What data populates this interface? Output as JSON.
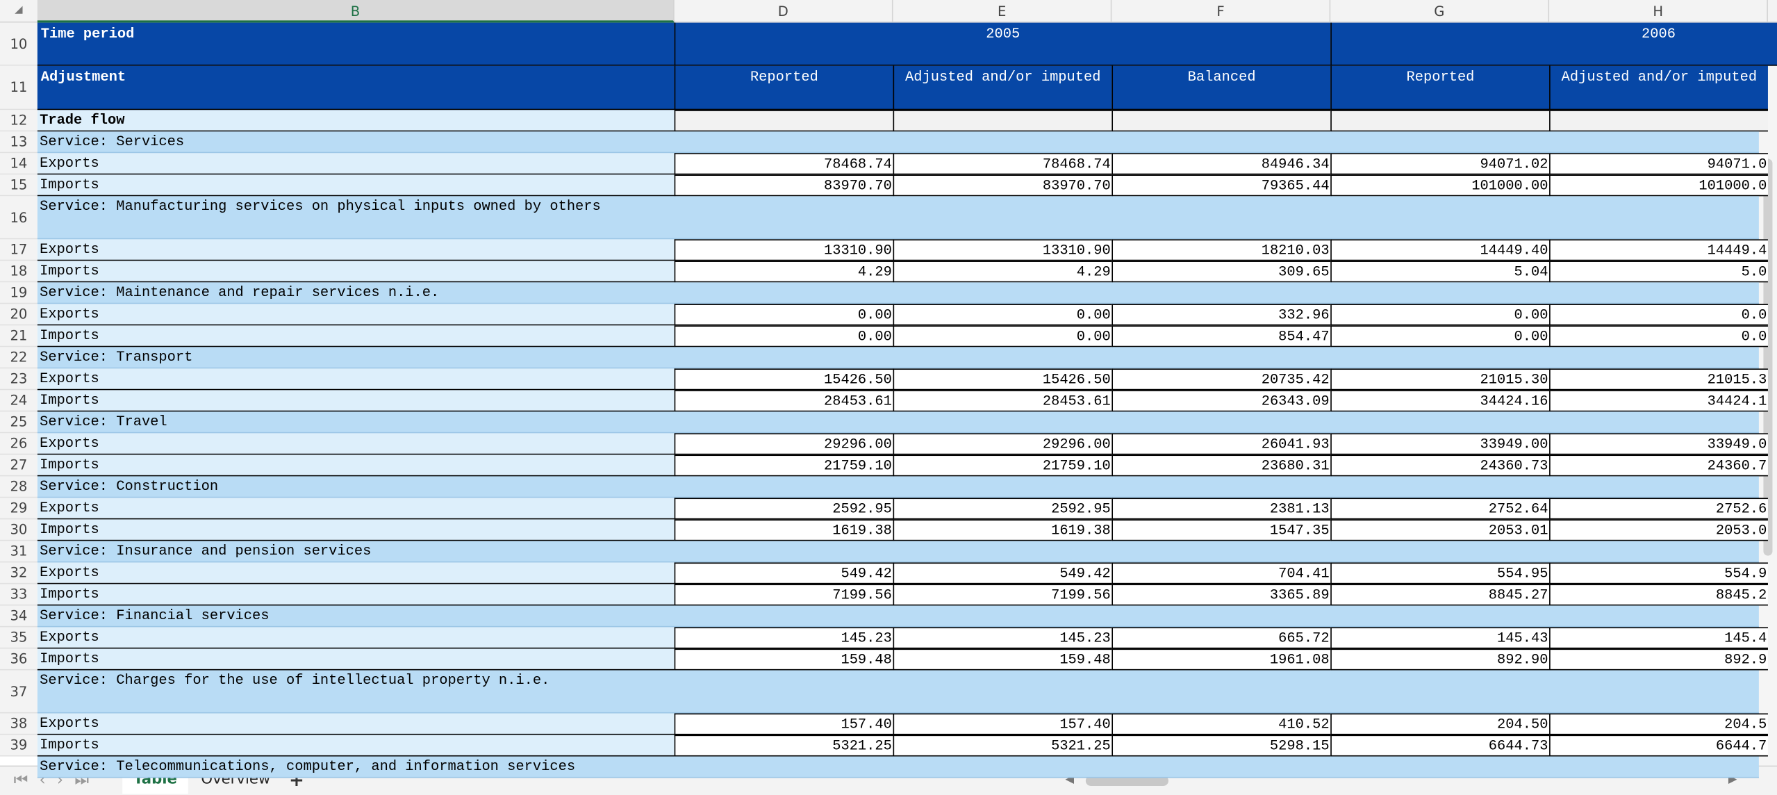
{
  "columns": [
    "B",
    "D",
    "E",
    "F",
    "G",
    "H"
  ],
  "header": {
    "row_numbers": [
      "10",
      "11"
    ],
    "time_period": "Time period",
    "years": [
      "2005",
      "2006"
    ],
    "adjustment": "Adjustment",
    "adjustments": [
      "Reported",
      "Adjusted and/or imputed",
      "Balanced",
      "Reported",
      "Adjusted and/or imputed"
    ]
  },
  "rows": [
    {
      "num": "12",
      "cells": [
        "Trade flow"
      ]
    },
    {
      "num": "13",
      "cells": [
        "Service: Services"
      ]
    },
    {
      "num": "14",
      "cells": [
        "Exports",
        "78468.74",
        "78468.74",
        "84946.34",
        "94071.02",
        "94071.0"
      ]
    },
    {
      "num": "15",
      "cells": [
        "Imports",
        "83970.70",
        "83970.70",
        "79365.44",
        "101000.00",
        "101000.0"
      ]
    },
    {
      "num": "16",
      "cells": [
        "Service: Manufacturing services on physical inputs owned by others"
      ]
    },
    {
      "num": "17",
      "cells": [
        "Exports",
        "13310.90",
        "13310.90",
        "18210.03",
        "14449.40",
        "14449.4"
      ]
    },
    {
      "num": "18",
      "cells": [
        "Imports",
        "4.29",
        "4.29",
        "309.65",
        "5.04",
        "5.0"
      ]
    },
    {
      "num": "19",
      "cells": [
        "Service: Maintenance and repair services n.i.e."
      ]
    },
    {
      "num": "20",
      "cells": [
        "Exports",
        "0.00",
        "0.00",
        "332.96",
        "0.00",
        "0.0"
      ]
    },
    {
      "num": "21",
      "cells": [
        "Imports",
        "0.00",
        "0.00",
        "854.47",
        "0.00",
        "0.0"
      ]
    },
    {
      "num": "22",
      "cells": [
        "Service: Transport"
      ]
    },
    {
      "num": "23",
      "cells": [
        "Exports",
        "15426.50",
        "15426.50",
        "20735.42",
        "21015.30",
        "21015.3"
      ]
    },
    {
      "num": "24",
      "cells": [
        "Imports",
        "28453.61",
        "28453.61",
        "26343.09",
        "34424.16",
        "34424.1"
      ]
    },
    {
      "num": "25",
      "cells": [
        "Service: Travel"
      ]
    },
    {
      "num": "26",
      "cells": [
        "Exports",
        "29296.00",
        "29296.00",
        "26041.93",
        "33949.00",
        "33949.0"
      ]
    },
    {
      "num": "27",
      "cells": [
        "Imports",
        "21759.10",
        "21759.10",
        "23680.31",
        "24360.73",
        "24360.7"
      ]
    },
    {
      "num": "28",
      "cells": [
        "Service: Construction"
      ]
    },
    {
      "num": "29",
      "cells": [
        "Exports",
        "2592.95",
        "2592.95",
        "2381.13",
        "2752.64",
        "2752.6"
      ]
    },
    {
      "num": "30",
      "cells": [
        "Imports",
        "1619.38",
        "1619.38",
        "1547.35",
        "2053.01",
        "2053.0"
      ]
    },
    {
      "num": "31",
      "cells": [
        "Service: Insurance and pension services"
      ]
    },
    {
      "num": "32",
      "cells": [
        "Exports",
        "549.42",
        "549.42",
        "704.41",
        "554.95",
        "554.9"
      ]
    },
    {
      "num": "33",
      "cells": [
        "Imports",
        "7199.56",
        "7199.56",
        "3365.89",
        "8845.27",
        "8845.2"
      ]
    },
    {
      "num": "34",
      "cells": [
        "Service: Financial services"
      ]
    },
    {
      "num": "35",
      "cells": [
        "Exports",
        "145.23",
        "145.23",
        "665.72",
        "145.43",
        "145.4"
      ]
    },
    {
      "num": "36",
      "cells": [
        "Imports",
        "159.48",
        "159.48",
        "1961.08",
        "892.90",
        "892.9"
      ]
    },
    {
      "num": "37",
      "cells": [
        "Service: Charges for the use of intellectual property n.i.e."
      ]
    },
    {
      "num": "38",
      "cells": [
        "Exports",
        "157.40",
        "157.40",
        "410.52",
        "204.50",
        "204.5"
      ]
    },
    {
      "num": "39",
      "cells": [
        "Imports",
        "5321.25",
        "5321.25",
        "5298.15",
        "6644.73",
        "6644.7"
      ]
    },
    {
      "cells": [
        "Service: Telecommunications, computer, and information services"
      ]
    }
  ],
  "tabs": [
    "Table",
    "Overview"
  ]
}
